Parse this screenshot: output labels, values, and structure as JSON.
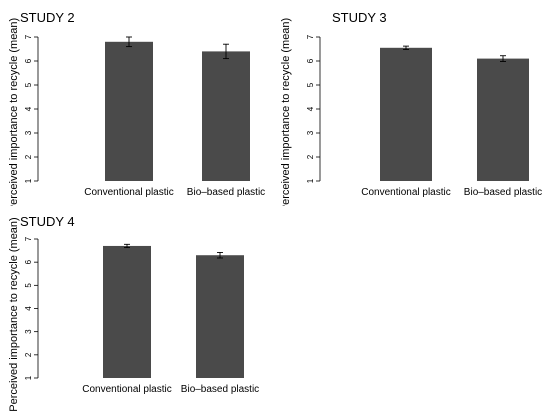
{
  "chart_data": [
    {
      "type": "bar",
      "title": "STUDY 2",
      "ylabel": "Perceived importance to recycle (mean)",
      "xlabel": "",
      "categories": [
        "Conventional plastic",
        "Bio–based plastic"
      ],
      "values": [
        6.8,
        6.4
      ],
      "errors": [
        0.2,
        0.3
      ],
      "ylim": [
        1,
        7
      ],
      "yticks": [
        "1",
        "2",
        "3",
        "4",
        "5",
        "6",
        "7"
      ],
      "grid": false,
      "bar_color": "#4a4a4a"
    },
    {
      "type": "bar",
      "title": "STUDY 3",
      "ylabel": "Perceived importance to recycle (mean)",
      "xlabel": "",
      "categories": [
        "Conventional plastic",
        "Bio–based plastic"
      ],
      "values": [
        6.55,
        6.1
      ],
      "errors": [
        0.07,
        0.12
      ],
      "ylim": [
        1,
        7
      ],
      "yticks": [
        "1",
        "2",
        "3",
        "4",
        "5",
        "6",
        "7"
      ],
      "grid": false,
      "bar_color": "#4a4a4a"
    },
    {
      "type": "bar",
      "title": "STUDY 4",
      "ylabel": "Perceived importance to recycle (mean)",
      "xlabel": "",
      "categories": [
        "Conventional plastic",
        "Bio–based plastic"
      ],
      "values": [
        6.7,
        6.3
      ],
      "errors": [
        0.07,
        0.12
      ],
      "ylim": [
        1,
        7
      ],
      "yticks": [
        "1",
        "2",
        "3",
        "4",
        "5",
        "6",
        "7"
      ],
      "grid": false,
      "bar_color": "#4a4a4a"
    }
  ]
}
